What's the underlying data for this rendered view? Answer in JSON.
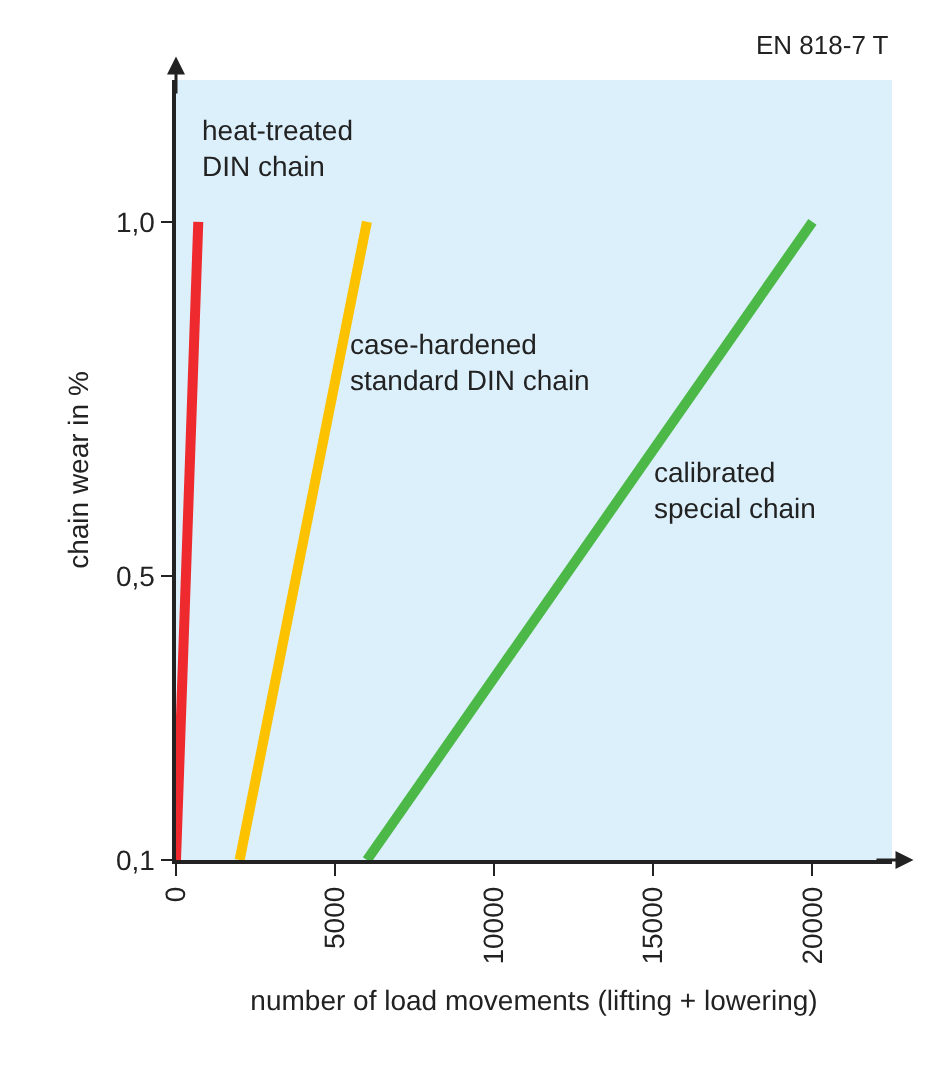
{
  "chart_data": {
    "type": "line",
    "xlabel": "number of load movements (lifting + lowering)",
    "ylabel": "chain wear in %",
    "annotations": [
      "EN 818-7 T"
    ],
    "series": [
      {
        "name": "heat-treated\nDIN chain",
        "color": "#ee2a2f",
        "x": [
          0,
          700
        ],
        "values": [
          0.1,
          1.0
        ]
      },
      {
        "name": "case-hardened\nstandard DIN chain",
        "color": "#fcc200",
        "x": [
          2000,
          6000
        ],
        "values": [
          0.1,
          1.0
        ]
      },
      {
        "name": "calibrated\nspecial chain",
        "color": "#4cb848",
        "x": [
          6000,
          20000
        ],
        "values": [
          0.1,
          1.0
        ]
      }
    ],
    "xlim": [
      0,
      22500
    ],
    "xticks": [
      0,
      5000,
      10000,
      15000,
      20000
    ],
    "ylim": [
      0.1,
      1.2
    ],
    "yticks": [
      {
        "value": 0.1,
        "label": "0,1"
      },
      {
        "value": 0.5,
        "label": "0,5"
      },
      {
        "value": 1.0,
        "label": "1,0"
      }
    ],
    "grid": false,
    "legend": false,
    "marker": "none",
    "line_style": "solid"
  }
}
